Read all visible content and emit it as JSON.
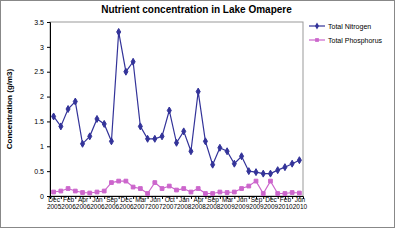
{
  "chart_data": {
    "type": "line",
    "title": "Nutrient concentration in Lake Omapere",
    "y_label": "Concentration (g/m3)",
    "categories": [
      "Dec 2005",
      null,
      "Feb 2006",
      null,
      "Apr 2006",
      null,
      "Jun 2006",
      null,
      "Sep 2006",
      null,
      "Dec 2006",
      null,
      "Mar 2007",
      null,
      "Jun 2007",
      null,
      "Oct 2007",
      null,
      "Jan 2008",
      null,
      "Apr 2008",
      null,
      "Sep 2008",
      null,
      "Mar 2009",
      null,
      "Jun 2009",
      null,
      "Sep 2009",
      null,
      "Dec 2009",
      null,
      "Feb 2010",
      null,
      "Jun 2010"
    ],
    "series": [
      {
        "name": "Total Nitrogen",
        "color": "#333399",
        "marker": "diamond",
        "line_style": "solid",
        "values": [
          1.6,
          1.4,
          1.75,
          1.9,
          1.05,
          1.2,
          1.55,
          1.45,
          1.1,
          3.3,
          2.5,
          2.7,
          1.4,
          1.15,
          1.15,
          1.2,
          1.72,
          1.07,
          1.3,
          0.9,
          2.1,
          1.1,
          0.63,
          0.97,
          0.9,
          0.65,
          0.8,
          0.5,
          0.48,
          0.45,
          0.45,
          0.52,
          0.58,
          0.65,
          0.72
        ]
      },
      {
        "name": "Total Phosphorus",
        "color": "#cc66cc",
        "marker": "square",
        "line_style": "solid",
        "values": [
          0.08,
          0.1,
          0.15,
          0.1,
          0.07,
          0.06,
          0.08,
          0.1,
          0.27,
          0.3,
          0.3,
          0.18,
          0.15,
          0.05,
          0.27,
          0.15,
          0.2,
          0.12,
          0.15,
          0.08,
          0.15,
          0.05,
          0.05,
          0.08,
          0.07,
          0.08,
          0.15,
          0.2,
          0.3,
          0.05,
          0.3,
          0.05,
          0.05,
          0.07,
          0.06
        ]
      }
    ],
    "ylim": [
      0,
      3.5
    ],
    "yticks": [
      0,
      0.5,
      1,
      1.5,
      2,
      2.5,
      3,
      3.5
    ],
    "grid": false,
    "legend": "upper right"
  }
}
